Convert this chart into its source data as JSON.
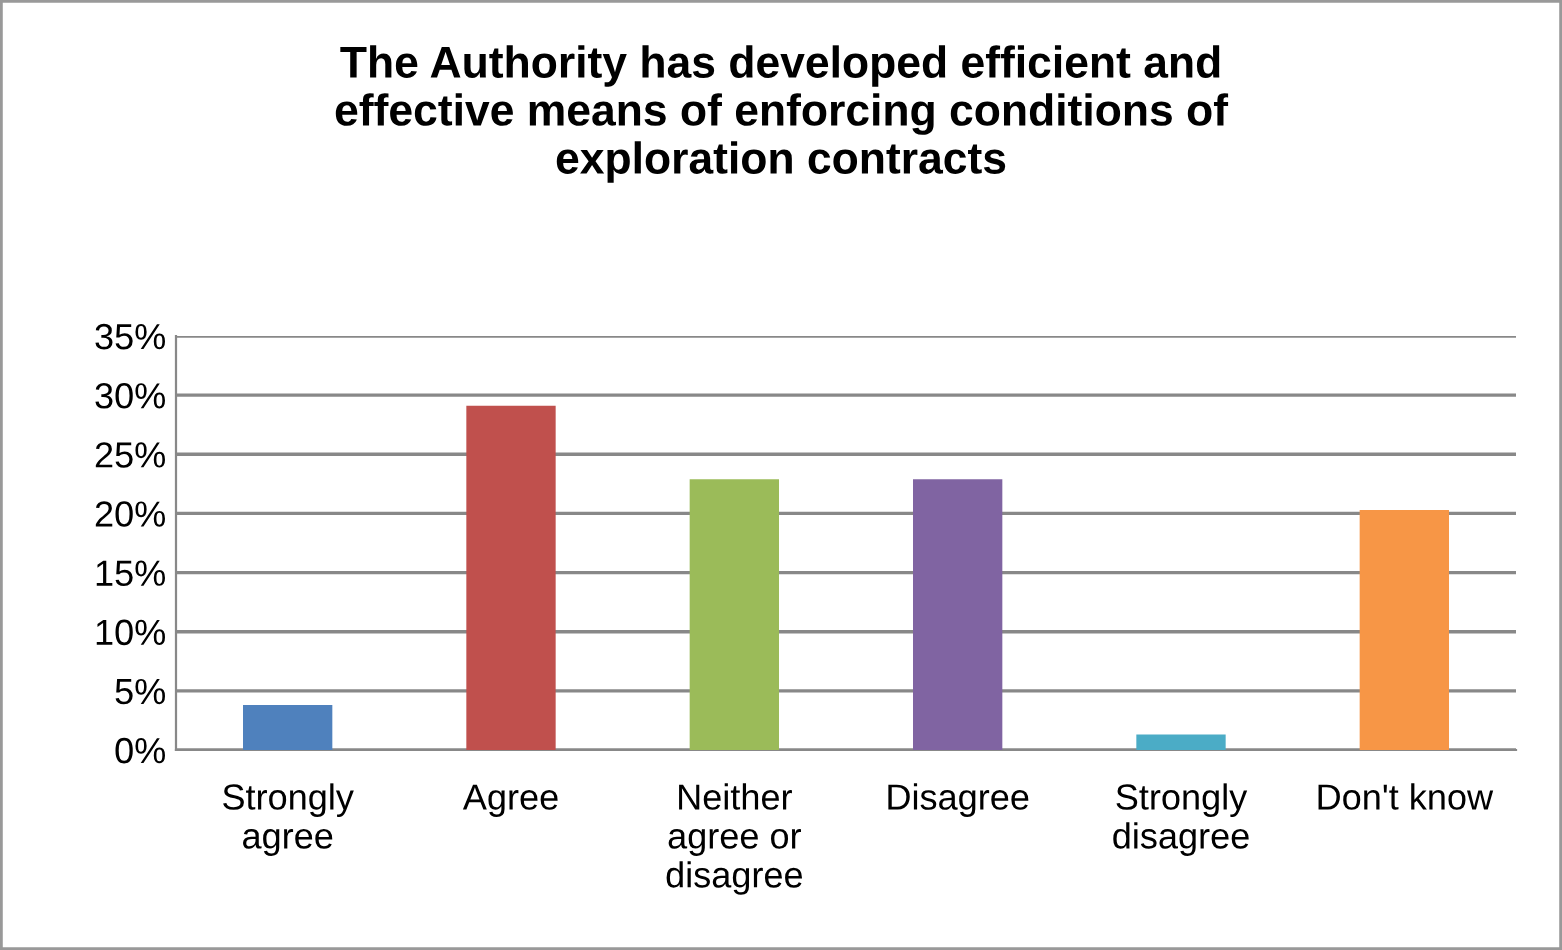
{
  "chart_data": {
    "type": "bar",
    "title": "The Authority has developed efficient and\neffective means of enforcing conditions of\nexploration contracts",
    "categories": [
      "Strongly\nagree",
      "Agree",
      "Neither\nagree or\ndisagree",
      "Disagree",
      "Strongly\ndisagree",
      "Don't know"
    ],
    "values": [
      3.8,
      29.1,
      22.9,
      22.9,
      1.3,
      20.3
    ],
    "colors": [
      "#4f81bd",
      "#c0504d",
      "#9bbb59",
      "#8064a2",
      "#4bacc6",
      "#f79646"
    ],
    "ylim": [
      0,
      35
    ],
    "yticks": [
      {
        "value": 0,
        "label": "0%"
      },
      {
        "value": 5,
        "label": "5%"
      },
      {
        "value": 10,
        "label": "10%"
      },
      {
        "value": 15,
        "label": "15%"
      },
      {
        "value": 20,
        "label": "20%"
      },
      {
        "value": 25,
        "label": "25%"
      },
      {
        "value": 30,
        "label": "30%"
      },
      {
        "value": 35,
        "label": "35%"
      }
    ],
    "grid": "y",
    "legend": false
  }
}
